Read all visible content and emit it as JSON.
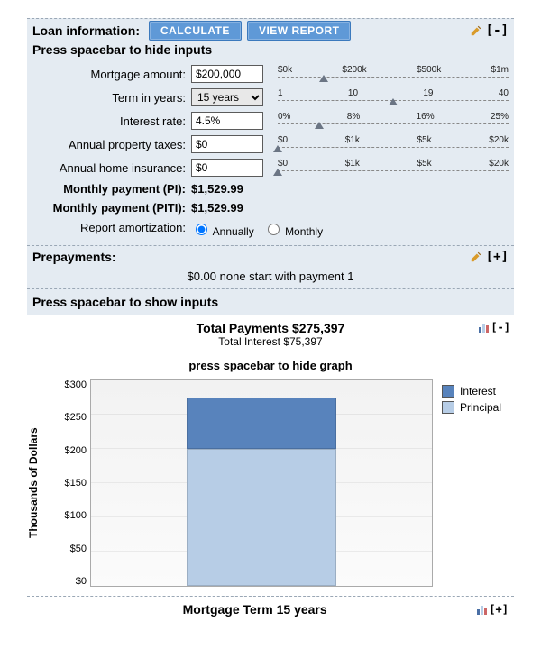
{
  "loan_info": {
    "title": "Loan information:",
    "buttons": {
      "calculate": "CALCULATE",
      "view_report": "VIEW REPORT"
    },
    "toggle_symbol": "[-]",
    "subhead": "Press spacebar to hide inputs",
    "fields": {
      "mortgage_amount": {
        "label": "Mortgage amount:",
        "value": "$200,000"
      },
      "term_years": {
        "label": "Term in years:",
        "value": "15 years"
      },
      "interest_rate": {
        "label": "Interest rate:",
        "value": "4.5%"
      },
      "property_taxes": {
        "label": "Annual property taxes:",
        "value": "$0"
      },
      "home_insurance": {
        "label": "Annual home insurance:",
        "value": "$0"
      },
      "monthly_pi": {
        "label": "Monthly payment (PI):",
        "value": "$1,529.99"
      },
      "monthly_piti": {
        "label": "Monthly payment (PITI):",
        "value": "$1,529.99"
      },
      "report_amort": {
        "label": "Report amortization:",
        "options": {
          "annually": "Annually",
          "monthly": "Monthly"
        },
        "selected": "annually"
      }
    },
    "sliders": {
      "amount": {
        "ticks": [
          "$0k",
          "$200k",
          "$500k",
          "$1m"
        ],
        "position_pct": 20
      },
      "term": {
        "ticks": [
          "1",
          "10",
          "19",
          "40"
        ],
        "position_pct": 50
      },
      "rate": {
        "ticks": [
          "0%",
          "8%",
          "16%",
          "25%"
        ],
        "position_pct": 18
      },
      "taxes": {
        "ticks": [
          "$0",
          "$1k",
          "$5k",
          "$20k"
        ],
        "position_pct": 0
      },
      "insurance": {
        "ticks": [
          "$0",
          "$1k",
          "$5k",
          "$20k"
        ],
        "position_pct": 0
      }
    }
  },
  "prepayments": {
    "title": "Prepayments:",
    "toggle_symbol": "[+]",
    "text": "$0.00 none start with payment 1"
  },
  "show_inputs": "Press spacebar to show inputs",
  "totals": {
    "total_payments_label": "Total Payments",
    "total_payments": "$275,397",
    "total_interest_label": "Total Interest",
    "total_interest": "$75,397",
    "toggle_symbol": "[-]"
  },
  "chart": {
    "type": "stacked_bar",
    "title": "press spacebar to hide graph",
    "yaxis_label": "Thousands of Dollars",
    "ylim": [
      0,
      300
    ],
    "ytick_step": 50,
    "yticks": [
      "$300",
      "$250",
      "$200",
      "$150",
      "$100",
      "$50",
      "$0"
    ],
    "categories": [
      "15 years"
    ],
    "bar_left_pct": 28,
    "bar_width_pct": 44,
    "series": [
      {
        "name": "Principal",
        "value": 200,
        "color": "#b7cde6"
      },
      {
        "name": "Interest",
        "value": 75,
        "color": "#5883bc"
      }
    ],
    "legend": [
      {
        "label": "Interest",
        "color": "#5883bc"
      },
      {
        "label": "Principal",
        "color": "#b7cde6"
      }
    ],
    "background_gradient_top": "#f2f2f2",
    "background_gradient_bottom": "#fbfbfb",
    "plot_border": "#aaaaaa"
  },
  "footer": {
    "title": "Mortgage Term 15 years",
    "toggle_symbol": "[+]"
  },
  "colors": {
    "panel_bg": "#e4ebf2",
    "button_bg": "#5f99d7"
  }
}
